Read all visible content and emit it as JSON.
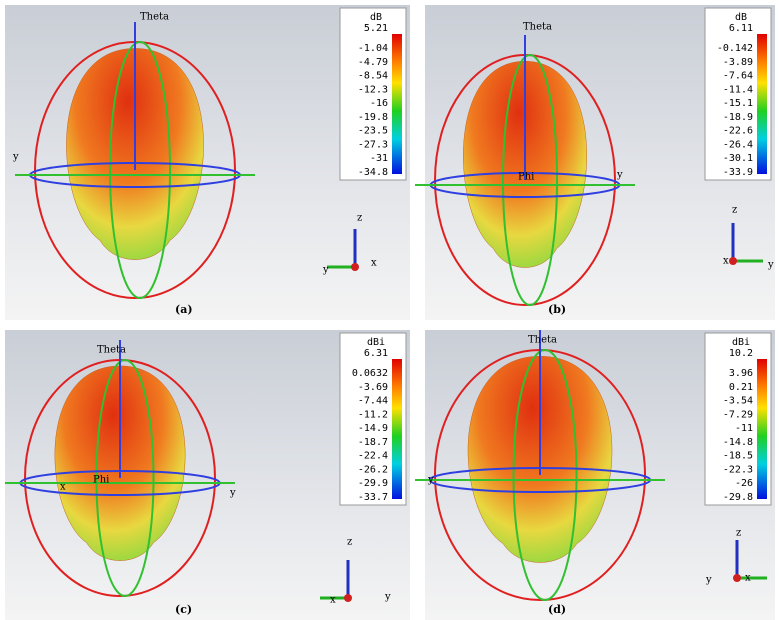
{
  "panels": [
    {
      "caption": "(a)",
      "colorbar": {
        "unit": "dB",
        "ticks": [
          "5.21",
          "-1.04",
          "-4.79",
          "-8.54",
          "-12.3",
          "-16",
          "-19.8",
          "-23.5",
          "-27.3",
          "-31",
          "-34.8"
        ]
      },
      "labels": [
        "Theta",
        "y",
        "z",
        "y",
        "x"
      ]
    },
    {
      "caption": "(b)",
      "colorbar": {
        "unit": "dB",
        "ticks": [
          "6.11",
          "-0.142",
          "-3.89",
          "-7.64",
          "-11.4",
          "-15.1",
          "-18.9",
          "-22.6",
          "-26.4",
          "-30.1",
          "-33.9"
        ]
      },
      "labels": [
        "Theta",
        "Phi",
        "y",
        "z",
        "x",
        "y"
      ]
    },
    {
      "caption": "(c)",
      "colorbar": {
        "unit": "dBi",
        "ticks": [
          "6.31",
          "0.0632",
          "-3.69",
          "-7.44",
          "-11.2",
          "-14.9",
          "-18.7",
          "-22.4",
          "-26.2",
          "-29.9",
          "-33.7"
        ]
      },
      "labels": [
        "Theta",
        "x",
        "Phi",
        "y",
        "z",
        "x",
        "y"
      ]
    },
    {
      "caption": "(d)",
      "colorbar": {
        "unit": "dBi",
        "ticks": [
          "10.2",
          "3.96",
          "0.21",
          "-3.54",
          "-7.29",
          "-11",
          "-14.8",
          "-18.5",
          "-22.3",
          "-26",
          "-29.8"
        ]
      },
      "labels": [
        "Theta",
        "y",
        "z",
        "y",
        "x"
      ]
    }
  ]
}
